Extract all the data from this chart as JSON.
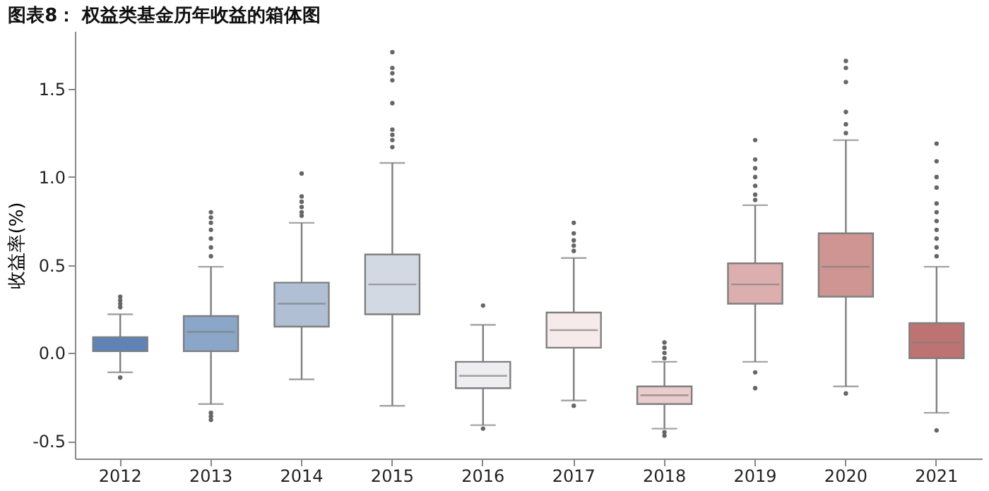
{
  "chart_data": {
    "type": "box",
    "title": "图表8：  权益类基金历年收益的箱体图",
    "ylabel": "收益率(%)",
    "categories": [
      "2012",
      "2013",
      "2014",
      "2015",
      "2016",
      "2017",
      "2018",
      "2019",
      "2020",
      "2021"
    ],
    "colors": [
      "#5b83bd",
      "#8aa6c8",
      "#b0bfd4",
      "#d3d9e3",
      "#eeeef1",
      "#f6eaea",
      "#e9cccb",
      "#dcaeae",
      "#ce9592",
      "#bd7371"
    ],
    "boxes": [
      {
        "low": -0.11,
        "q1": 0.01,
        "median": 0.05,
        "q3": 0.09,
        "high": 0.22,
        "outliers": [
          0.26,
          0.28,
          0.3,
          0.32,
          -0.14
        ]
      },
      {
        "low": -0.29,
        "q1": 0.01,
        "median": 0.12,
        "q3": 0.21,
        "high": 0.49,
        "outliers": [
          0.55,
          0.6,
          0.65,
          0.7,
          0.74,
          0.77,
          0.8,
          -0.34,
          -0.36,
          -0.38
        ]
      },
      {
        "low": -0.15,
        "q1": 0.15,
        "median": 0.28,
        "q3": 0.4,
        "high": 0.74,
        "outliers": [
          0.78,
          0.8,
          0.83,
          0.86,
          0.89,
          1.02
        ]
      },
      {
        "low": -0.3,
        "q1": 0.22,
        "median": 0.39,
        "q3": 0.56,
        "high": 1.08,
        "outliers": [
          1.17,
          1.21,
          1.24,
          1.27,
          1.42,
          1.55,
          1.59,
          1.62,
          1.71
        ]
      },
      {
        "low": -0.41,
        "q1": -0.2,
        "median": -0.13,
        "q3": -0.05,
        "high": 0.16,
        "outliers": [
          0.27,
          -0.43
        ]
      },
      {
        "low": -0.27,
        "q1": 0.03,
        "median": 0.13,
        "q3": 0.23,
        "high": 0.54,
        "outliers": [
          0.58,
          0.61,
          0.64,
          0.68,
          0.74,
          -0.3
        ]
      },
      {
        "low": -0.43,
        "q1": -0.29,
        "median": -0.24,
        "q3": -0.19,
        "high": -0.05,
        "outliers": [
          -0.03,
          0.0,
          0.03,
          0.06,
          -0.45,
          -0.47
        ]
      },
      {
        "low": -0.05,
        "q1": 0.28,
        "median": 0.39,
        "q3": 0.51,
        "high": 0.84,
        "outliers": [
          0.87,
          0.9,
          0.95,
          1.0,
          1.05,
          1.1,
          1.21,
          -0.11,
          -0.2
        ]
      },
      {
        "low": -0.19,
        "q1": 0.32,
        "median": 0.49,
        "q3": 0.68,
        "high": 1.21,
        "outliers": [
          1.25,
          1.3,
          1.37,
          1.54,
          1.62,
          1.66,
          -0.23
        ]
      },
      {
        "low": -0.34,
        "q1": -0.03,
        "median": 0.06,
        "q3": 0.17,
        "high": 0.49,
        "outliers": [
          0.55,
          0.6,
          0.65,
          0.7,
          0.75,
          0.8,
          0.85,
          0.94,
          1.0,
          1.09,
          1.19,
          -0.44
        ]
      }
    ],
    "ylim": [
      -0.6,
      1.83
    ],
    "yticks": [
      {
        "value": -0.5,
        "label": "-0.5"
      },
      {
        "value": 0.0,
        "label": "0.0"
      },
      {
        "value": 0.5,
        "label": "0.5"
      },
      {
        "value": 1.0,
        "label": "1.0"
      },
      {
        "value": 1.5,
        "label": "1.5"
      }
    ],
    "grid": false
  }
}
